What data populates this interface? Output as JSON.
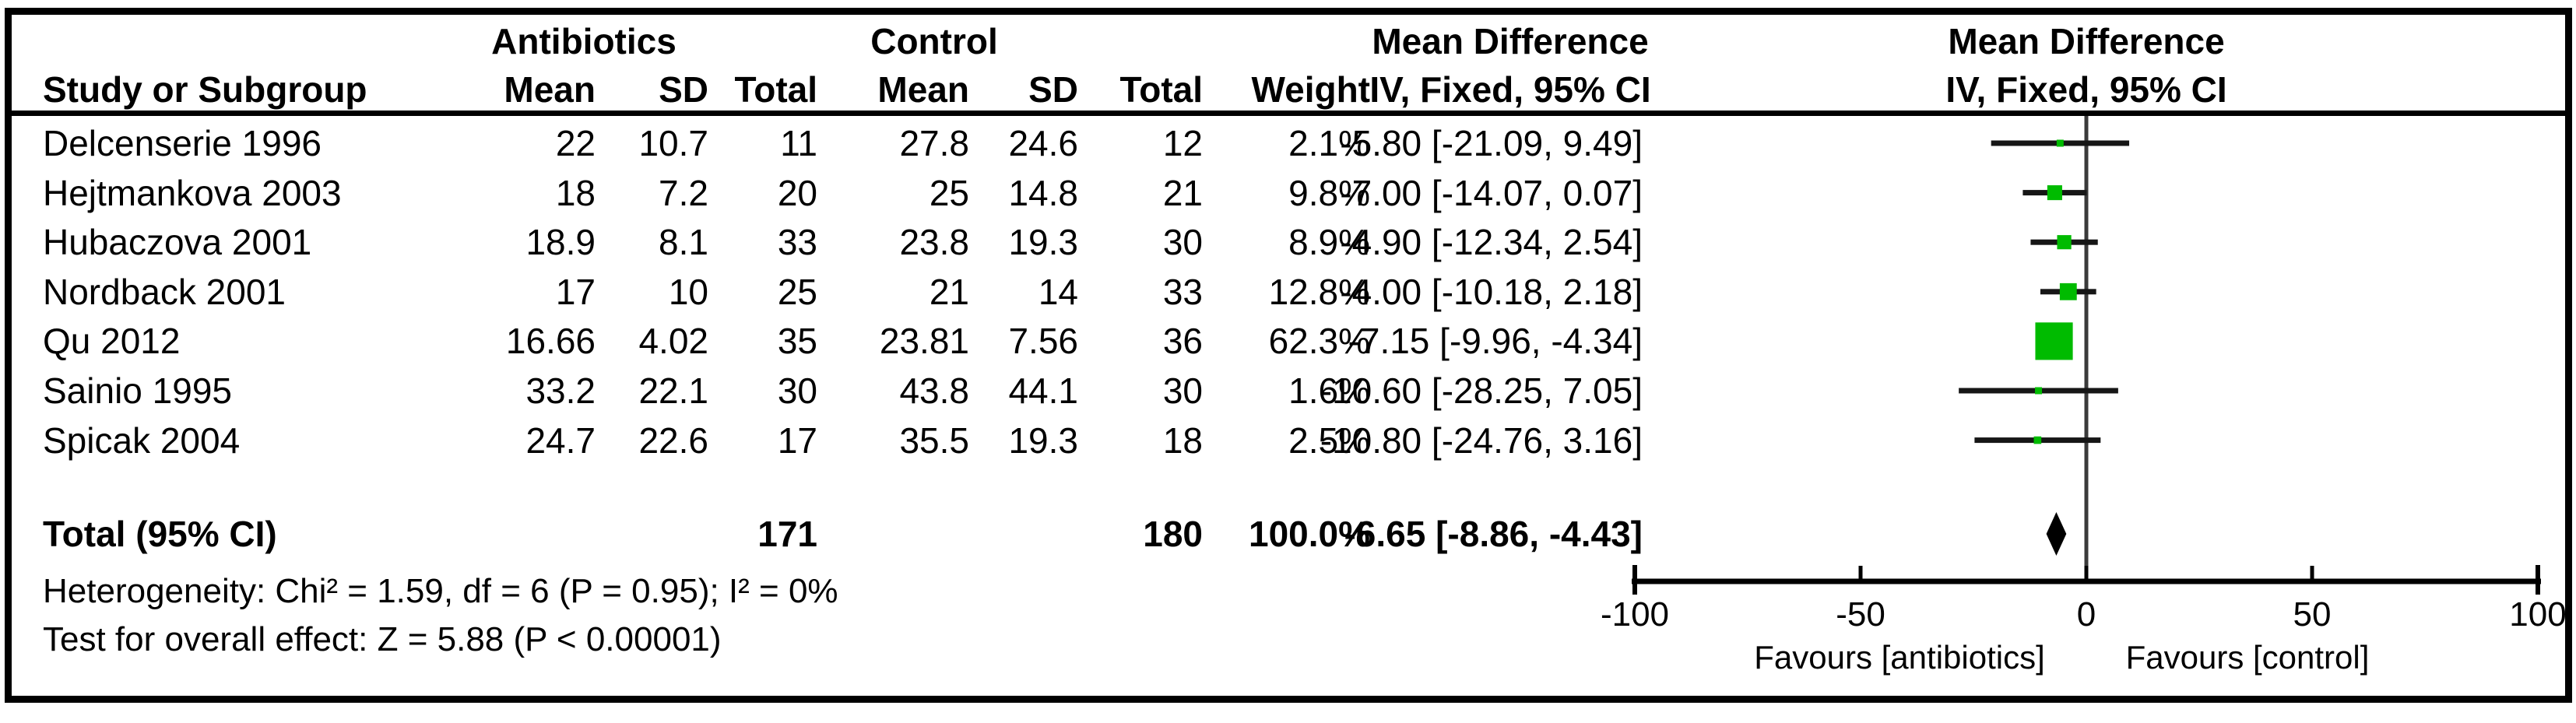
{
  "table": {
    "group_headers": {
      "antibiotics": "Antibiotics",
      "control": "Control"
    },
    "column_headers": {
      "study": "Study or Subgroup",
      "mean": "Mean",
      "sd": "SD",
      "total": "Total",
      "weight": "Weight"
    },
    "effect_headers": {
      "title": "Mean Difference",
      "method": "IV, Fixed, 95% CI"
    }
  },
  "chart_data": {
    "type": "forest",
    "effect_measure": "Mean Difference",
    "method_label": "IV, Fixed, 95% CI",
    "group_labels": [
      "Antibiotics",
      "Control"
    ],
    "studies": [
      {
        "study": "Delcenserie 1996",
        "ab_mean": "22",
        "ab_sd": "10.7",
        "ab_total": "11",
        "c_mean": "27.8",
        "c_sd": "24.6",
        "c_total": "12",
        "weight": "2.1%",
        "weight_pct": 2.1,
        "ci_text": "-5.80 [-21.09, 9.49]",
        "md": -5.8,
        "ci_low": -21.09,
        "ci_high": 9.49
      },
      {
        "study": "Hejtmankova 2003",
        "ab_mean": "18",
        "ab_sd": "7.2",
        "ab_total": "20",
        "c_mean": "25",
        "c_sd": "14.8",
        "c_total": "21",
        "weight": "9.8%",
        "weight_pct": 9.8,
        "ci_text": "-7.00 [-14.07, 0.07]",
        "md": -7.0,
        "ci_low": -14.07,
        "ci_high": 0.07
      },
      {
        "study": "Hubaczova 2001",
        "ab_mean": "18.9",
        "ab_sd": "8.1",
        "ab_total": "33",
        "c_mean": "23.8",
        "c_sd": "19.3",
        "c_total": "30",
        "weight": "8.9%",
        "weight_pct": 8.9,
        "ci_text": "-4.90 [-12.34, 2.54]",
        "md": -4.9,
        "ci_low": -12.34,
        "ci_high": 2.54
      },
      {
        "study": "Nordback 2001",
        "ab_mean": "17",
        "ab_sd": "10",
        "ab_total": "25",
        "c_mean": "21",
        "c_sd": "14",
        "c_total": "33",
        "weight": "12.8%",
        "weight_pct": 12.8,
        "ci_text": "-4.00 [-10.18, 2.18]",
        "md": -4.0,
        "ci_low": -10.18,
        "ci_high": 2.18
      },
      {
        "study": "Qu 2012",
        "ab_mean": "16.66",
        "ab_sd": "4.02",
        "ab_total": "35",
        "c_mean": "23.81",
        "c_sd": "7.56",
        "c_total": "36",
        "weight": "62.3%",
        "weight_pct": 62.3,
        "ci_text": "-7.15 [-9.96, -4.34]",
        "md": -7.15,
        "ci_low": -9.96,
        "ci_high": -4.34
      },
      {
        "study": "Sainio 1995",
        "ab_mean": "33.2",
        "ab_sd": "22.1",
        "ab_total": "30",
        "c_mean": "43.8",
        "c_sd": "44.1",
        "c_total": "30",
        "weight": "1.6%",
        "weight_pct": 1.6,
        "ci_text": "-10.60 [-28.25, 7.05]",
        "md": -10.6,
        "ci_low": -28.25,
        "ci_high": 7.05
      },
      {
        "study": "Spicak 2004",
        "ab_mean": "24.7",
        "ab_sd": "22.6",
        "ab_total": "17",
        "c_mean": "35.5",
        "c_sd": "19.3",
        "c_total": "18",
        "weight": "2.5%",
        "weight_pct": 2.5,
        "ci_text": "-10.80 [-24.76, 3.16]",
        "md": -10.8,
        "ci_low": -24.76,
        "ci_high": 3.16
      }
    ],
    "total": {
      "label": "Total (95% CI)",
      "ab_total": "171",
      "c_total": "180",
      "weight": "100.0%",
      "ci_text": "-6.65 [-8.86, -4.43]",
      "md": -6.65,
      "ci_low": -8.86,
      "ci_high": -4.43
    },
    "heterogeneity": "Heterogeneity: Chi² = 1.59, df = 6 (P = 0.95); I² = 0%",
    "overall_effect_test": "Test for overall effect: Z = 5.88 (P < 0.00001)",
    "xaxis": {
      "ticks": [
        -100,
        -50,
        0,
        50,
        100
      ],
      "range": [
        -100,
        100
      ],
      "favours_left": "Favours [antibiotics]",
      "favours_right": "Favours [control]"
    },
    "colors": {
      "marker_green": "#00bb00",
      "ci_line": "#161616",
      "zero_line": "#3a3a3a",
      "axis": "#000000",
      "diamond": "#000000"
    }
  }
}
